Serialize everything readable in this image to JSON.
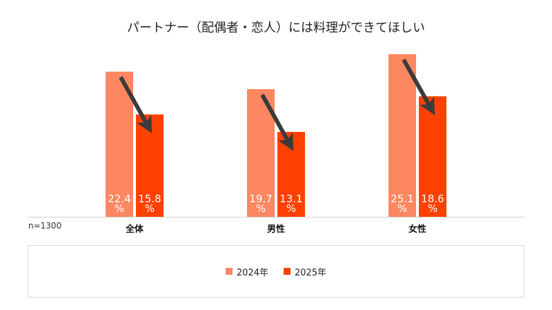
{
  "chart_data": {
    "type": "bar",
    "title": "パートナー（配偶者・恋人）には料理ができてほしい",
    "categories": [
      "全体",
      "男性",
      "女性"
    ],
    "series": [
      {
        "name": "2024年",
        "values": [
          22.4,
          19.7,
          25.1
        ],
        "labels": [
          "22.4%",
          "19.7%",
          "25.1%"
        ],
        "color": "#fd8760"
      },
      {
        "name": "2025年",
        "values": [
          15.8,
          13.1,
          18.6
        ],
        "labels": [
          "15.8%",
          "13.1%",
          "18.6%"
        ],
        "color": "#fe4100"
      }
    ],
    "ylim": [
      0,
      26
    ],
    "grid": false,
    "legend": "bottom",
    "annotations": [
      "n=1300"
    ],
    "arrow_color": "#3b3b3b"
  }
}
